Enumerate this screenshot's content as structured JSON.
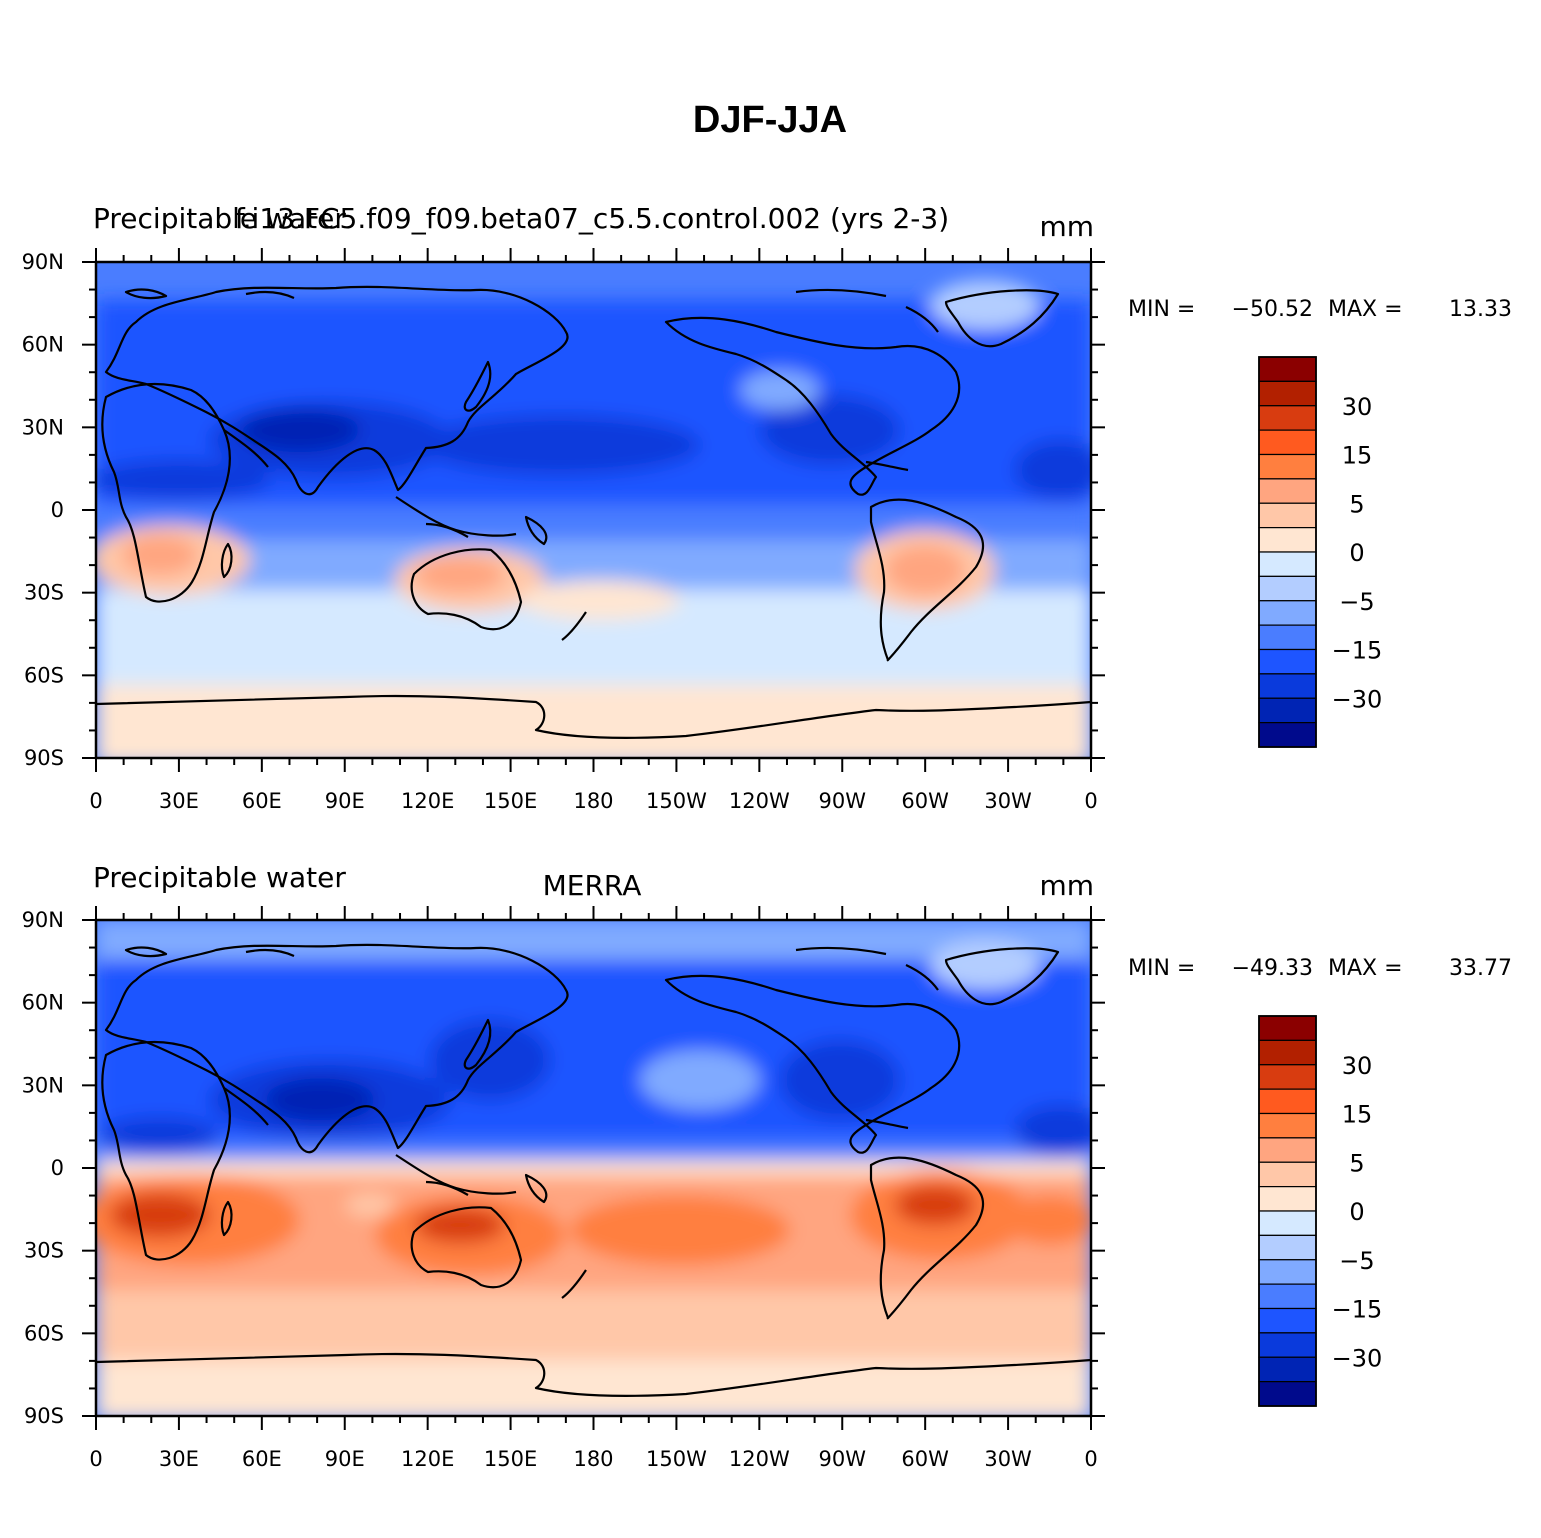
{
  "title": "DJF-JJA",
  "panels": [
    {
      "left_title": "Precipitable water",
      "center_title": "f.i13.FC5.f09_f09.beta07_c5.5.control.002 (yrs 2-3)",
      "units": "mm",
      "min_label": "MIN =",
      "min_value": "−50.52",
      "max_label": "MAX =",
      "max_value": "13.33"
    },
    {
      "left_title": "Precipitable water",
      "center_title": "MERRA",
      "units": "mm",
      "min_label": "MIN =",
      "min_value": "−49.33",
      "max_label": "MAX =",
      "max_value": "33.77"
    }
  ],
  "lat_labels": [
    "90N",
    "60N",
    "30N",
    "0",
    "30S",
    "60S",
    "90S"
  ],
  "lon_labels": [
    "0",
    "30E",
    "60E",
    "90E",
    "120E",
    "150E",
    "180",
    "150W",
    "120W",
    "90W",
    "60W",
    "30W",
    "0"
  ],
  "colorbar": {
    "colors": [
      "#8b0000",
      "#b22000",
      "#d83c10",
      "#ff5a1f",
      "#ff7f3f",
      "#ffa580",
      "#ffc7a8",
      "#ffe6d2",
      "#d5e9ff",
      "#b3cdff",
      "#80aaff",
      "#4a7dff",
      "#1e55ff",
      "#0a3adc",
      "#0024b4",
      "#000a8c"
    ],
    "labels": [
      "30",
      "15",
      "5",
      "0",
      "−5",
      "−15",
      "−30"
    ]
  }
}
